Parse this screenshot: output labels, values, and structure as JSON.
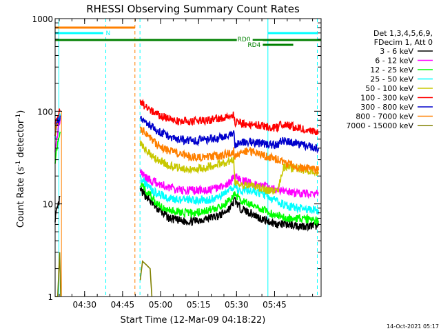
{
  "chart_data": {
    "type": "line",
    "title": "RHESSI Observing Summary Count Rates",
    "xlabel": "Start Time (12-Mar-09 04:18:22)",
    "ylabel_parts": [
      "Count Rate (s",
      "-1",
      " detector",
      "-1",
      ")"
    ],
    "yscale": "log",
    "ylim": [
      1,
      1000
    ],
    "x_range_minutes": [
      0,
      105
    ],
    "x_ticks": [
      {
        "minute": 11.63,
        "label": "04:30"
      },
      {
        "minute": 26.63,
        "label": "04:45"
      },
      {
        "minute": 41.63,
        "label": "05:00"
      },
      {
        "minute": 56.63,
        "label": "05:15"
      },
      {
        "minute": 71.63,
        "label": "05:30"
      },
      {
        "minute": 86.63,
        "label": "05:45"
      }
    ],
    "y_ticks": [
      {
        "value": 1,
        "label": "1"
      },
      {
        "value": 10,
        "label": "10"
      },
      {
        "value": 100,
        "label": "100"
      },
      {
        "value": 1000,
        "label": "1000"
      }
    ],
    "legend_header": [
      "Det 1,3,4,5,6,9,",
      "FDecim 1, Att 0"
    ],
    "series": [
      {
        "name": "3 - 6 keV",
        "color": "#000000",
        "segments": [
          [
            [
              0,
              7
            ],
            [
              1,
              9
            ],
            [
              2,
              12
            ]
          ],
          [
            [
              33.6,
              14
            ],
            [
              36,
              12
            ],
            [
              40,
              9
            ],
            [
              45,
              7
            ],
            [
              50,
              6.5
            ],
            [
              55,
              6.5
            ],
            [
              60,
              7
            ],
            [
              65,
              7.5
            ],
            [
              69,
              9
            ],
            [
              71,
              11
            ],
            [
              73,
              9
            ],
            [
              77,
              8
            ],
            [
              81,
              7
            ],
            [
              84,
              6.5
            ],
            [
              88,
              6
            ],
            [
              92,
              6
            ],
            [
              96,
              5.8
            ],
            [
              100,
              5.8
            ],
            [
              104,
              5.8
            ]
          ]
        ]
      },
      {
        "name": "6 - 12 keV",
        "color": "#ff00ff",
        "segments": [
          [
            [
              0,
              40
            ],
            [
              1,
              60
            ],
            [
              2,
              85
            ]
          ],
          [
            [
              33.6,
              22
            ],
            [
              36,
              19
            ],
            [
              40,
              17
            ],
            [
              45,
              15
            ],
            [
              50,
              14
            ],
            [
              55,
              14
            ],
            [
              60,
              14
            ],
            [
              65,
              15
            ],
            [
              69,
              17
            ],
            [
              71,
              20
            ],
            [
              73,
              18
            ],
            [
              77,
              17
            ],
            [
              81,
              16
            ],
            [
              84,
              15
            ],
            [
              88,
              14
            ],
            [
              92,
              13.5
            ],
            [
              96,
              13
            ],
            [
              100,
              13
            ],
            [
              104,
              13
            ]
          ]
        ]
      },
      {
        "name": "12 - 25 keV",
        "color": "#00ff00",
        "segments": [
          [
            [
              0,
              30
            ],
            [
              1,
              45
            ],
            [
              2,
              60
            ]
          ],
          [
            [
              33.6,
              17
            ],
            [
              36,
              14
            ],
            [
              40,
              10
            ],
            [
              45,
              8.5
            ],
            [
              50,
              8
            ],
            [
              55,
              8
            ],
            [
              60,
              8.5
            ],
            [
              65,
              9
            ],
            [
              69,
              11
            ],
            [
              71,
              13
            ],
            [
              73,
              11
            ],
            [
              77,
              10
            ],
            [
              81,
              9
            ],
            [
              84,
              8
            ],
            [
              88,
              7.5
            ],
            [
              92,
              7
            ],
            [
              96,
              7
            ],
            [
              100,
              6.8
            ],
            [
              104,
              6.5
            ]
          ]
        ]
      },
      {
        "name": "25 - 50 keV",
        "color": "#00ffff",
        "segments": [
          [
            [
              0,
              55
            ],
            [
              1,
              75
            ],
            [
              2,
              90
            ]
          ],
          [
            [
              33.6,
              20
            ],
            [
              36,
              16
            ],
            [
              40,
              13
            ],
            [
              45,
              11.5
            ],
            [
              50,
              11
            ],
            [
              55,
              11
            ],
            [
              60,
              11
            ],
            [
              65,
              12
            ],
            [
              69,
              14
            ],
            [
              71,
              15
            ],
            [
              73,
              14
            ],
            [
              77,
              14
            ],
            [
              81,
              13
            ],
            [
              84,
              12
            ],
            [
              88,
              10.5
            ],
            [
              92,
              9.5
            ],
            [
              96,
              9
            ],
            [
              100,
              8.8
            ],
            [
              104,
              8.5
            ]
          ]
        ]
      },
      {
        "name": "50 - 100 keV",
        "color": "#c8c800",
        "segments": [
          [
            [
              0,
              60
            ],
            [
              1,
              75
            ]
          ],
          [
            [
              33.6,
              45
            ],
            [
              36,
              38
            ],
            [
              40,
              31
            ],
            [
              45,
              26
            ],
            [
              50,
              24
            ],
            [
              55,
              24
            ],
            [
              60,
              25
            ],
            [
              65,
              27
            ],
            [
              69,
              29
            ],
            [
              70.5,
              31
            ],
            [
              71,
              17
            ],
            [
              73,
              16
            ],
            [
              77,
              15.5
            ],
            [
              81,
              15
            ],
            [
              84,
              14
            ],
            [
              88,
              13.5
            ],
            [
              90,
              25
            ],
            [
              92,
              25
            ],
            [
              96,
              24
            ],
            [
              100,
              23
            ],
            [
              104,
              22
            ]
          ]
        ]
      },
      {
        "name": "100 - 300 keV",
        "color": "#ff0000",
        "segments": [
          [
            [
              0,
              80
            ],
            [
              1,
              90
            ],
            [
              2,
              100
            ]
          ],
          [
            [
              33.6,
              125
            ],
            [
              36,
              112
            ],
            [
              40,
              93
            ],
            [
              45,
              82
            ],
            [
              50,
              78
            ],
            [
              55,
              78
            ],
            [
              60,
              80
            ],
            [
              65,
              83
            ],
            [
              69,
              88
            ],
            [
              70.5,
              92
            ],
            [
              71,
              75
            ],
            [
              81,
              70
            ],
            [
              88,
              66
            ],
            [
              89,
              72
            ],
            [
              92,
              70
            ],
            [
              96,
              66
            ],
            [
              100,
              62
            ],
            [
              104,
              58
            ]
          ]
        ]
      },
      {
        "name": "300 - 800 keV",
        "color": "#0000cc",
        "segments": [
          [
            [
              0,
              60
            ],
            [
              1,
              75
            ],
            [
              2,
              90
            ]
          ],
          [
            [
              33.6,
              85
            ],
            [
              36,
              76
            ],
            [
              40,
              62
            ],
            [
              45,
              53
            ],
            [
              50,
              49
            ],
            [
              55,
              48
            ],
            [
              60,
              49
            ],
            [
              65,
              52
            ],
            [
              69,
              55
            ],
            [
              70.5,
              58
            ],
            [
              71,
              42
            ],
            [
              73,
              46
            ],
            [
              77,
              47
            ],
            [
              81,
              45
            ],
            [
              84,
              44
            ],
            [
              88,
              43
            ],
            [
              89,
              48
            ],
            [
              92,
              47
            ],
            [
              96,
              44
            ],
            [
              100,
              42
            ],
            [
              104,
              40
            ]
          ]
        ]
      },
      {
        "name": "800 - 7000 keV",
        "color": "#ff8000",
        "segments": [
          [
            [
              0,
              60
            ],
            [
              1,
              75
            ]
          ],
          [
            [
              33.6,
              65
            ],
            [
              36,
              56
            ],
            [
              40,
              44
            ],
            [
              45,
              37
            ],
            [
              50,
              34
            ],
            [
              55,
              32
            ],
            [
              60,
              32
            ],
            [
              65,
              33
            ],
            [
              69,
              35
            ],
            [
              70.5,
              37
            ],
            [
              71,
              32
            ],
            [
              73,
              37
            ],
            [
              77,
              37
            ],
            [
              81,
              34
            ],
            [
              84,
              32
            ],
            [
              88,
              30
            ],
            [
              90,
              28
            ],
            [
              92,
              27
            ],
            [
              96,
              25
            ],
            [
              100,
              24
            ],
            [
              104,
              23
            ]
          ]
        ]
      },
      {
        "name": "7000 - 15000 keV",
        "color": "#808000",
        "segments": [
          [
            [
              0,
              1
            ],
            [
              1,
              1
            ],
            [
              1.8,
              3
            ],
            [
              2.2,
              1
            ]
          ],
          [
            [
              33.6,
              1.5
            ],
            [
              34.5,
              2.4
            ],
            [
              36,
              2.2
            ],
            [
              37.5,
              2
            ],
            [
              38.2,
              1
            ]
          ]
        ]
      }
    ],
    "annotations": {
      "flag_labels": [
        "N",
        "RD0",
        "RD4"
      ],
      "vertical_markers": [
        {
          "minute": 1.5,
          "color": "#00ffff"
        },
        {
          "minute": 20,
          "color": "#00ffff"
        },
        {
          "minute": 31.5,
          "color": "#ff8000"
        },
        {
          "minute": 33.5,
          "color": "#00ffff"
        },
        {
          "minute": 84,
          "color": "#00ffff"
        },
        {
          "minute": 103.5,
          "color": "#00ffff"
        }
      ],
      "flag_bars": [
        {
          "label": "",
          "color": "#ff8000",
          "start": 0,
          "end": 31.5
        },
        {
          "label": "N",
          "color": "#00ffff",
          "start": 0,
          "end": 19
        },
        {
          "label": "",
          "color": "#00ffff",
          "start": 84,
          "end": 103.5
        },
        {
          "label": "RD0",
          "color": "#008000",
          "start": 0,
          "end": 105
        },
        {
          "label": "RD4",
          "color": "#008000",
          "start": 78,
          "end": 94
        }
      ],
      "orange_solid_spike_minute": 2.5
    },
    "footer": "14-Oct-2021 05:17"
  }
}
